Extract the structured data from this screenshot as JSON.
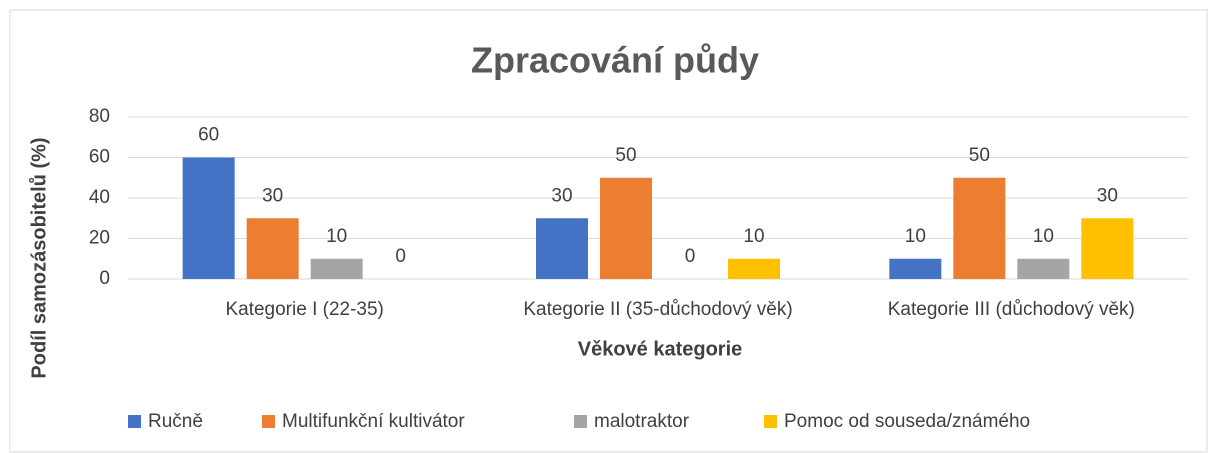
{
  "chart_data": {
    "type": "bar",
    "title": "Zpracování půdy",
    "xlabel": "Věkové kategorie",
    "ylabel": "Podíl samozásobitelů (%)",
    "categories": [
      "Kategorie I (22-35)",
      "Kategorie II (35-důchodový věk)",
      "Kategorie III (důchodový věk)"
    ],
    "series": [
      {
        "name": "Ručně",
        "color": "#4472c4",
        "values": [
          60,
          30,
          10
        ]
      },
      {
        "name": "Multifunkční kultivátor",
        "color": "#ed7d31",
        "values": [
          30,
          50,
          50
        ]
      },
      {
        "name": "malotraktor",
        "color": "#a5a5a5",
        "values": [
          10,
          0,
          10
        ]
      },
      {
        "name": "Pomoc od souseda/známého",
        "color": "#ffc000",
        "values": [
          0,
          10,
          30
        ]
      }
    ],
    "ylim": [
      0,
      80
    ],
    "yticks": [
      0,
      20,
      40,
      60,
      80
    ],
    "grid": true,
    "legend": "bottom"
  }
}
